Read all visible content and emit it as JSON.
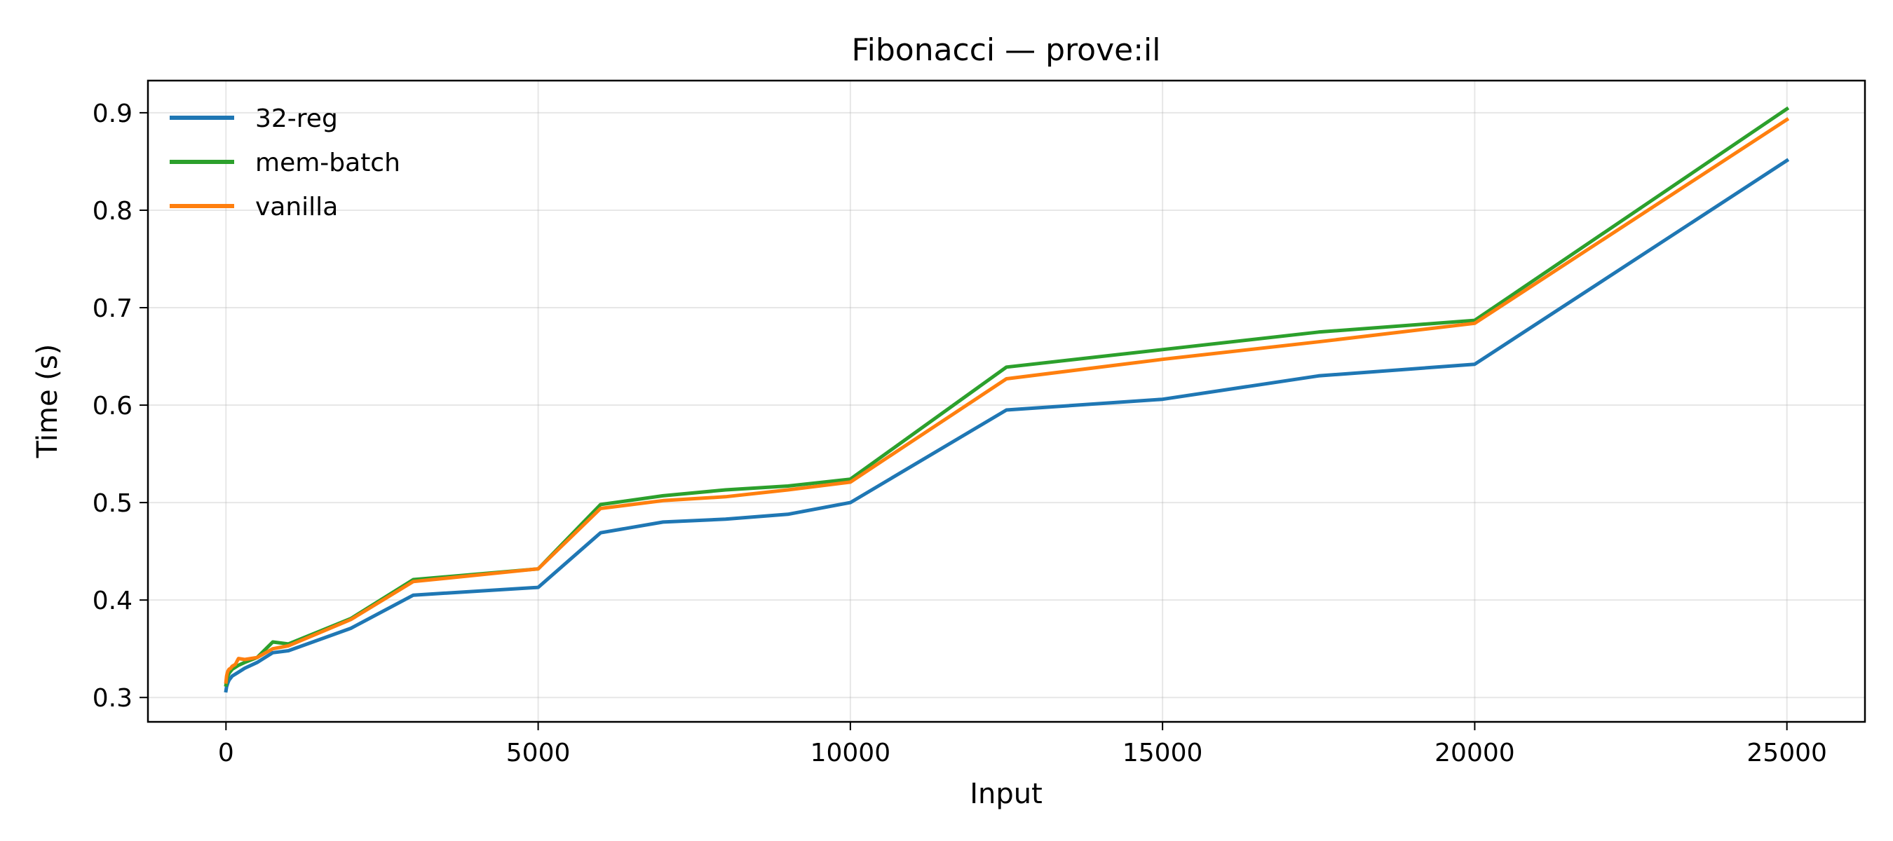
{
  "chart_data": {
    "type": "line",
    "title": "Fibonacci — prove:il",
    "xlabel": "Input",
    "ylabel": "Time (s)",
    "xlim": [
      -1250,
      26250
    ],
    "ylim": [
      0.275,
      0.933
    ],
    "xticks": [
      0,
      5000,
      10000,
      15000,
      20000,
      25000
    ],
    "xtick_labels": [
      "0",
      "5000",
      "10000",
      "15000",
      "20000",
      "25000"
    ],
    "yticks": [
      0.3,
      0.4,
      0.5,
      0.6,
      0.7,
      0.8,
      0.9
    ],
    "ytick_labels": [
      "0.3",
      "0.4",
      "0.5",
      "0.6",
      "0.7",
      "0.8",
      "0.9"
    ],
    "grid": true,
    "legend_position": "top-left",
    "series": [
      {
        "name": "32-reg",
        "color": "#1f77b4",
        "x": [
          0,
          10,
          20,
          30,
          50,
          75,
          100,
          150,
          200,
          300,
          500,
          750,
          1000,
          2000,
          3000,
          5000,
          6000,
          7000,
          8000,
          9000,
          10000,
          12500,
          15000,
          17500,
          20000,
          25000
        ],
        "y": [
          0.307,
          0.311,
          0.313,
          0.315,
          0.318,
          0.32,
          0.322,
          0.324,
          0.326,
          0.33,
          0.336,
          0.346,
          0.348,
          0.371,
          0.405,
          0.413,
          0.469,
          0.48,
          0.483,
          0.488,
          0.5,
          0.595,
          0.606,
          0.63,
          0.642,
          0.851
        ]
      },
      {
        "name": "mem-batch",
        "color": "#2ca02c",
        "x": [
          0,
          10,
          20,
          30,
          50,
          75,
          100,
          150,
          200,
          300,
          500,
          750,
          1000,
          2000,
          3000,
          5000,
          6000,
          7000,
          8000,
          9000,
          10000,
          12500,
          15000,
          17500,
          20000,
          25000
        ],
        "y": [
          0.313,
          0.317,
          0.32,
          0.322,
          0.325,
          0.327,
          0.329,
          0.331,
          0.333,
          0.336,
          0.341,
          0.357,
          0.355,
          0.381,
          0.421,
          0.432,
          0.498,
          0.507,
          0.513,
          0.517,
          0.524,
          0.639,
          0.657,
          0.675,
          0.687,
          0.904
        ]
      },
      {
        "name": "vanilla",
        "color": "#ff7f0e",
        "x": [
          0,
          10,
          20,
          30,
          50,
          75,
          100,
          150,
          200,
          300,
          500,
          750,
          1000,
          2000,
          3000,
          5000,
          6000,
          7000,
          8000,
          9000,
          10000,
          12500,
          15000,
          17500,
          20000,
          25000
        ],
        "y": [
          0.316,
          0.322,
          0.325,
          0.327,
          0.329,
          0.33,
          0.332,
          0.334,
          0.34,
          0.339,
          0.341,
          0.35,
          0.353,
          0.38,
          0.419,
          0.432,
          0.494,
          0.502,
          0.506,
          0.513,
          0.521,
          0.627,
          0.647,
          0.665,
          0.684,
          0.893
        ]
      }
    ]
  }
}
